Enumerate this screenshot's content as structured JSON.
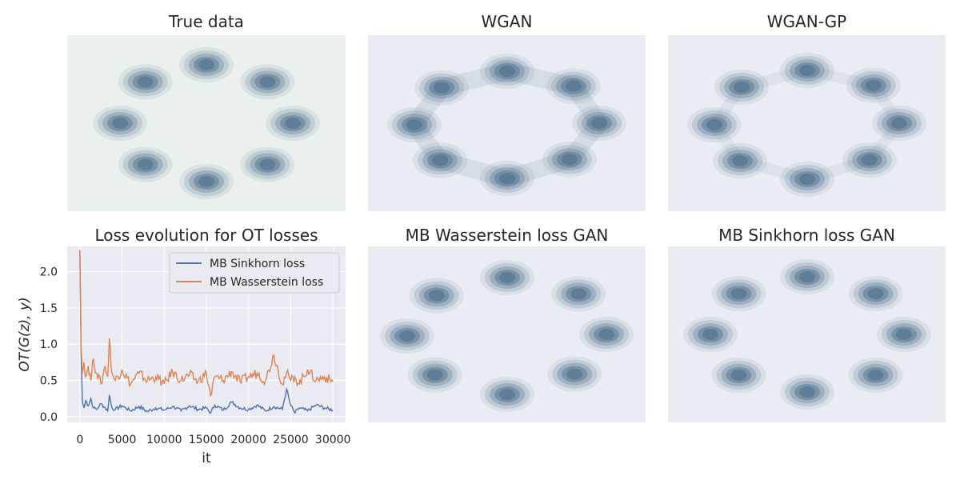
{
  "panels": [
    {
      "title": "True data"
    },
    {
      "title": "WGAN"
    },
    {
      "title": "WGAN-GP"
    },
    {
      "title": "Loss evolution for OT losses"
    },
    {
      "title": "MB Wasserstein loss GAN"
    },
    {
      "title": "MB Sinkhorn loss GAN"
    }
  ],
  "colors": {
    "sinkhorn": "#4c72b0",
    "wasserstein": "#dd8452",
    "kde": "#4e6f8c",
    "plot_bg": "#eaeaf2"
  },
  "chart_data": [
    {
      "type": "heatmap",
      "title": "True data",
      "description_mode": "kde",
      "modes": [
        {
          "angle": 90,
          "label": "mode-top"
        },
        {
          "angle": 45,
          "label": "mode-top-right"
        },
        {
          "angle": 0,
          "label": "mode-right"
        },
        {
          "angle": -45,
          "label": "mode-bottom-right"
        },
        {
          "angle": -90,
          "label": "mode-bottom"
        },
        {
          "angle": -135,
          "label": "mode-bottom-left"
        },
        {
          "angle": 180,
          "label": "mode-left"
        },
        {
          "angle": 135,
          "label": "mode-top-left"
        }
      ]
    },
    {
      "type": "heatmap",
      "title": "WGAN",
      "description_mode": "kde"
    },
    {
      "type": "heatmap",
      "title": "WGAN-GP",
      "description_mode": "kde"
    },
    {
      "type": "line",
      "title": "Loss evolution for OT losses",
      "xlabel": "it",
      "ylabel": "OT(G(z), y)",
      "xlim": [
        -1500,
        31500
      ],
      "ylim": [
        -0.08,
        2.35
      ],
      "xticks": [
        0,
        5000,
        10000,
        15000,
        20000,
        25000,
        30000
      ],
      "yticks": [
        0.0,
        0.5,
        1.0,
        1.5,
        2.0
      ],
      "xtick_labels": [
        "0",
        "5000",
        "10000",
        "15000",
        "20000",
        "25000",
        "30000"
      ],
      "ytick_labels": [
        "0.0",
        "0.5",
        "1.0",
        "1.5",
        "2.0"
      ],
      "grid": true,
      "legend_position": "upper right",
      "series": [
        {
          "name": "MB Sinkhorn loss",
          "x": [
            0,
            150,
            300,
            500,
            700,
            1000,
            1300,
            1600,
            2000,
            2500,
            3000,
            3300,
            3500,
            3800,
            4200,
            5000,
            6000,
            7000,
            8000,
            9000,
            10000,
            11000,
            12000,
            13000,
            14000,
            15000,
            15500,
            16000,
            17000,
            18000,
            19000,
            20000,
            21000,
            22000,
            23000,
            24000,
            24500,
            25000,
            25500,
            26000,
            27000,
            28000,
            29000,
            30000
          ],
          "y": [
            2.3,
            0.9,
            0.2,
            0.12,
            0.22,
            0.15,
            0.25,
            0.12,
            0.1,
            0.18,
            0.12,
            0.08,
            0.3,
            0.12,
            0.1,
            0.15,
            0.08,
            0.14,
            0.07,
            0.12,
            0.09,
            0.14,
            0.08,
            0.15,
            0.1,
            0.12,
            0.05,
            0.16,
            0.09,
            0.2,
            0.12,
            0.1,
            0.16,
            0.08,
            0.14,
            0.1,
            0.38,
            0.15,
            0.05,
            0.12,
            0.08,
            0.16,
            0.12,
            0.09
          ]
        },
        {
          "name": "MB Wasserstein loss",
          "x": [
            0,
            150,
            300,
            500,
            700,
            1000,
            1300,
            1600,
            2000,
            2500,
            3000,
            3300,
            3500,
            3800,
            4200,
            5000,
            6000,
            7000,
            8000,
            9000,
            10000,
            11000,
            12000,
            13000,
            14000,
            15000,
            15500,
            16000,
            17000,
            18000,
            19000,
            20000,
            21000,
            22000,
            23000,
            24000,
            24500,
            25000,
            25500,
            26000,
            27000,
            28000,
            29000,
            30000
          ],
          "y": [
            2.3,
            0.95,
            0.6,
            0.75,
            0.55,
            0.7,
            0.5,
            0.8,
            0.6,
            0.45,
            0.7,
            0.55,
            1.08,
            0.6,
            0.5,
            0.65,
            0.45,
            0.6,
            0.5,
            0.55,
            0.45,
            0.62,
            0.5,
            0.58,
            0.48,
            0.6,
            0.28,
            0.55,
            0.5,
            0.62,
            0.48,
            0.55,
            0.6,
            0.5,
            0.85,
            0.45,
            0.6,
            0.5,
            0.55,
            0.45,
            0.65,
            0.5,
            0.55,
            0.48
          ]
        }
      ]
    },
    {
      "type": "heatmap",
      "title": "MB Wasserstein loss GAN",
      "description_mode": "kde"
    },
    {
      "type": "heatmap",
      "title": "MB Sinkhorn loss GAN",
      "description_mode": "kde"
    }
  ]
}
